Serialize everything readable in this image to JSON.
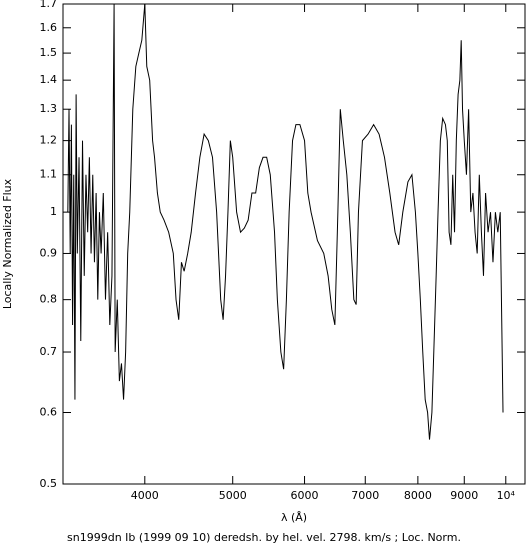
{
  "chart_data": {
    "type": "line",
    "title": "sn1999dn Ib (1999 09 10) deredsh. by hel. vel.  2798. km/s ;  Loc. Norm.",
    "x_label": "λ (Å)",
    "y_label": "Locally Normalized Flux",
    "x": [
      3290,
      3300,
      3310,
      3320,
      3330,
      3340,
      3350,
      3360,
      3370,
      3385,
      3400,
      3415,
      3430,
      3445,
      3460,
      3475,
      3490,
      3505,
      3520,
      3535,
      3550,
      3565,
      3580,
      3600,
      3620,
      3640,
      3660,
      3680,
      3700,
      3710,
      3730,
      3750,
      3770,
      3790,
      3810,
      3830,
      3850,
      3880,
      3910,
      3940,
      3970,
      4000,
      4020,
      4050,
      4080,
      4100,
      4130,
      4160,
      4200,
      4250,
      4300,
      4330,
      4360,
      4390,
      4420,
      4460,
      4500,
      4550,
      4600,
      4650,
      4700,
      4750,
      4800,
      4850,
      4880,
      4910,
      4940,
      4970,
      5000,
      5050,
      5100,
      5150,
      5200,
      5250,
      5300,
      5350,
      5400,
      5450,
      5500,
      5560,
      5600,
      5650,
      5690,
      5730,
      5770,
      5820,
      5870,
      5930,
      6000,
      6050,
      6100,
      6200,
      6300,
      6370,
      6430,
      6480,
      6530,
      6570,
      6620,
      6680,
      6740,
      6800,
      6840,
      6880,
      6950,
      7050,
      7150,
      7250,
      7350,
      7450,
      7550,
      7620,
      7700,
      7800,
      7880,
      7950,
      8000,
      8050,
      8100,
      8150,
      8200,
      8240,
      8290,
      8330,
      8380,
      8420,
      8470,
      8520,
      8580,
      8620,
      8660,
      8700,
      8740,
      8780,
      8820,
      8860,
      8900,
      8930,
      8960,
      9000,
      9050,
      9100,
      9150,
      9200,
      9250,
      9300,
      9350,
      9400,
      9450,
      9500,
      9560,
      9620,
      9680,
      9740,
      9800,
      9860,
      9930
    ],
    "values": [
      1.0,
      1.3,
      0.9,
      1.25,
      0.75,
      1.1,
      0.62,
      1.35,
      0.9,
      1.15,
      0.72,
      1.2,
      0.85,
      1.1,
      0.95,
      1.15,
      0.9,
      1.1,
      0.88,
      1.05,
      0.8,
      1.0,
      0.9,
      1.05,
      0.8,
      0.95,
      0.75,
      0.85,
      1.7,
      0.7,
      0.8,
      0.65,
      0.68,
      0.62,
      0.7,
      0.9,
      1.0,
      1.3,
      1.45,
      1.5,
      1.55,
      1.7,
      1.45,
      1.4,
      1.2,
      1.15,
      1.05,
      1.0,
      0.98,
      0.95,
      0.9,
      0.8,
      0.76,
      0.88,
      0.86,
      0.9,
      0.95,
      1.05,
      1.15,
      1.22,
      1.2,
      1.15,
      1.0,
      0.8,
      0.76,
      0.85,
      1.0,
      1.2,
      1.15,
      1.0,
      0.95,
      0.96,
      0.98,
      1.05,
      1.05,
      1.12,
      1.15,
      1.15,
      1.1,
      0.95,
      0.8,
      0.7,
      0.67,
      0.8,
      1.0,
      1.2,
      1.25,
      1.25,
      1.2,
      1.05,
      1.0,
      0.93,
      0.9,
      0.85,
      0.78,
      0.75,
      1.0,
      1.3,
      1.2,
      1.1,
      0.95,
      0.8,
      0.79,
      1.0,
      1.2,
      1.22,
      1.25,
      1.22,
      1.15,
      1.05,
      0.95,
      0.92,
      1.0,
      1.08,
      1.1,
      1.0,
      0.9,
      0.8,
      0.7,
      0.62,
      0.6,
      0.56,
      0.6,
      0.7,
      0.85,
      1.0,
      1.2,
      1.27,
      1.25,
      1.2,
      0.95,
      0.92,
      1.1,
      0.95,
      1.2,
      1.35,
      1.4,
      1.55,
      1.3,
      1.2,
      1.1,
      1.3,
      1.0,
      1.05,
      0.95,
      0.9,
      1.1,
      0.95,
      0.85,
      1.05,
      0.95,
      1.0,
      0.88,
      1.0,
      0.95,
      1.0,
      0.6
    ],
    "color": "#000000",
    "xlim": [
      3250,
      10500
    ],
    "ylim": [
      0.5,
      1.7
    ],
    "xticks": [
      4000,
      5000,
      6000,
      7000,
      8000,
      9000,
      {
        "value": 10000,
        "label": "10⁴"
      }
    ],
    "yticks": [
      0.5,
      0.6,
      0.7,
      0.8,
      0.9,
      1,
      1.1,
      1.2,
      1.3,
      1.4,
      1.5,
      1.6,
      1.7
    ],
    "xscale": "log",
    "yscale": "log",
    "grid": false
  }
}
